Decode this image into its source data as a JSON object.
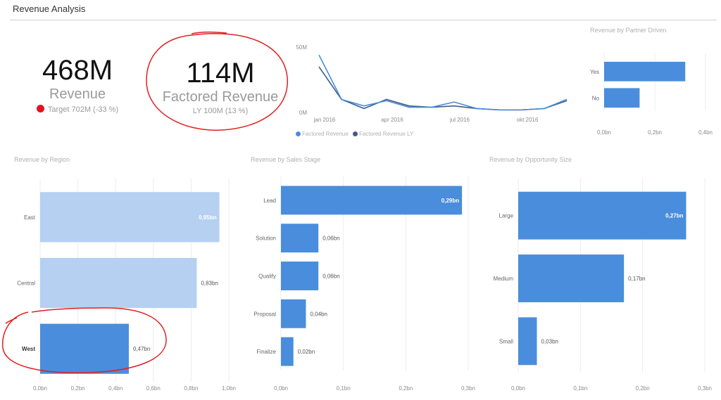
{
  "page": {
    "title": "Revenue Analysis"
  },
  "kpis": {
    "revenue": {
      "value": "468M",
      "label": "Revenue",
      "target_text": "Target 702M (-33 %)",
      "status_color": "#e81123"
    },
    "factored": {
      "value": "114M",
      "label": "Factored Revenue",
      "ly_text": "LY 100M (13 %)"
    }
  },
  "colors": {
    "bar": "#4a8ddc",
    "bar_light": "#b5d0f1",
    "series_2": "#3e5d87",
    "annotation": "#e02020",
    "grid": "#ececec"
  },
  "chart_data": [
    {
      "id": "revenue-trend",
      "type": "line",
      "title": "",
      "x": [
        "2016-01",
        "2016-02",
        "2016-03",
        "2016-04",
        "2016-05",
        "2016-06",
        "2016-07",
        "2016-08",
        "2016-09",
        "2016-10",
        "2016-11",
        "2016-12"
      ],
      "x_tick_labels": [
        {
          "x": "2016-01",
          "label": "jan 2016"
        },
        {
          "x": "2016-04",
          "label": "apr 2016"
        },
        {
          "x": "2016-07",
          "label": "jul 2016"
        },
        {
          "x": "2016-10",
          "label": "okt 2016"
        }
      ],
      "y_tick_labels": [
        {
          "value": 0,
          "label": "0M"
        },
        {
          "value": 50,
          "label": "50M"
        }
      ],
      "ylim": [
        0,
        50
      ],
      "grid": false,
      "series": [
        {
          "name": "Factored Revenue",
          "color": "#4a8ddc",
          "values": [
            44,
            10,
            5,
            9,
            4,
            4,
            8,
            3,
            2,
            2,
            3,
            10
          ]
        },
        {
          "name": "Factored Revenue LY",
          "color": "#3e5d87",
          "values": [
            35,
            10,
            3,
            10,
            5,
            4,
            5,
            3,
            2,
            2,
            3,
            9
          ]
        }
      ],
      "legend": {
        "position": "bottom-left"
      }
    },
    {
      "id": "partner-driven",
      "type": "bar",
      "orientation": "horizontal",
      "title": "Revenue by Partner Driven",
      "categories": [
        "Yes",
        "No"
      ],
      "values": [
        0.32,
        0.14
      ],
      "xlim": [
        0,
        0.4
      ],
      "x_tick_labels": [
        "0,0bn",
        "0,2bn",
        "0,4bn"
      ],
      "grid": true
    },
    {
      "id": "region",
      "type": "bar",
      "orientation": "horizontal",
      "title": "Revenue by Region",
      "categories": [
        "East",
        "Central",
        "West"
      ],
      "values": [
        0.95,
        0.83,
        0.47
      ],
      "value_labels": [
        "0,95bn",
        "0,83bn",
        "0,47bn"
      ],
      "highlighted": [
        false,
        false,
        true
      ],
      "xlim": [
        0,
        1.0
      ],
      "x_tick_labels": [
        "0,0bn",
        "0,2bn",
        "0,4bn",
        "0,6bn",
        "0,8bn",
        "1,0bn"
      ],
      "grid": true
    },
    {
      "id": "sales-stage",
      "type": "bar",
      "orientation": "horizontal",
      "title": "Revenue by Sales Stage",
      "categories": [
        "Lead",
        "Solution",
        "Qualify",
        "Proposal",
        "Finalize"
      ],
      "values": [
        0.29,
        0.06,
        0.06,
        0.04,
        0.02
      ],
      "value_labels": [
        "0,29bn",
        "0,06bn",
        "0,06bn",
        "0,04bn",
        "0,02bn"
      ],
      "xlim": [
        0,
        0.3
      ],
      "x_tick_labels": [
        "0,0bn",
        "0,1bn",
        "0,2bn",
        "0,3bn"
      ],
      "grid": true
    },
    {
      "id": "opportunity-size",
      "type": "bar",
      "orientation": "horizontal",
      "title": "Revenue by Opportunity Size",
      "categories": [
        "Large",
        "Medium",
        "Small"
      ],
      "values": [
        0.27,
        0.17,
        0.03
      ],
      "value_labels": [
        "0,27bn",
        "0,17bn",
        "0,03bn"
      ],
      "xlim": [
        0,
        0.3
      ],
      "x_tick_labels": [
        "0,0bn",
        "0,1bn",
        "0,2bn",
        "0,3bn"
      ],
      "grid": true
    }
  ]
}
